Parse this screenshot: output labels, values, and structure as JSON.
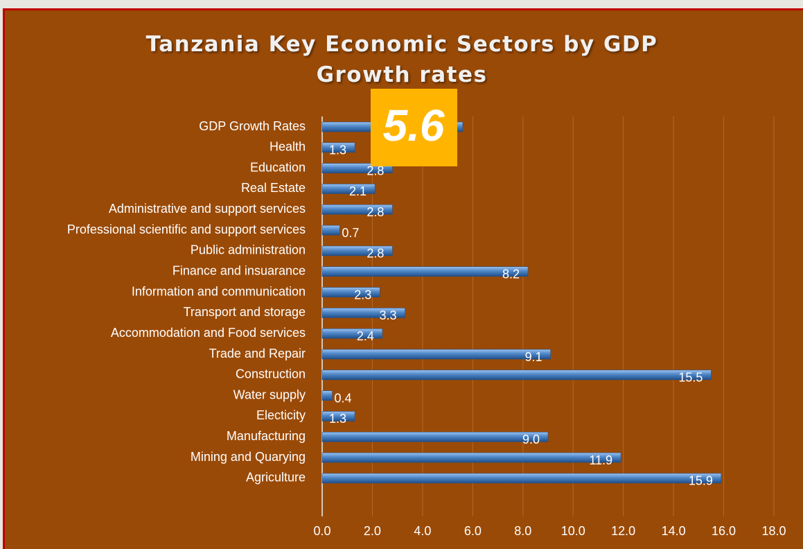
{
  "chart_data": {
    "type": "bar",
    "orientation": "horizontal",
    "title": "Tanzania Key Economic Sectors by GDP Growth rates",
    "categories": [
      "GDP Growth Rates",
      "Health",
      "Education",
      "Real Estate",
      "Administrative and support services",
      "Professional scientific and support services",
      "Public administration",
      "Finance and insuarance",
      "Information and communication",
      "Transport and storage",
      "Accommodation and Food services",
      "Trade and Repair",
      "Construction",
      "Water supply",
      "Electicity",
      "Manufacturing",
      "Mining and Quarying",
      "Agriculture"
    ],
    "values": [
      5.6,
      1.3,
      2.8,
      2.1,
      2.8,
      0.7,
      2.8,
      8.2,
      2.3,
      3.3,
      2.4,
      9.1,
      15.5,
      0.4,
      1.3,
      9,
      11.9,
      15.9
    ],
    "value_labels": [
      "5.6",
      "1.3",
      "2.8",
      "2.1",
      "2.8",
      "0.7",
      "2.8",
      "8.2",
      "2.3",
      "3.3",
      "2.4",
      "9.1",
      "15.5",
      "0.4",
      "1.3",
      "9.0",
      "11.9",
      "15.9"
    ],
    "color": "#4f86c6",
    "xlim": [
      0,
      18
    ],
    "xticks": [
      {
        "value": 0,
        "label": "0.0"
      },
      {
        "value": 2,
        "label": "2.0"
      },
      {
        "value": 4,
        "label": "4.0"
      },
      {
        "value": 6,
        "label": "6.0"
      },
      {
        "value": 8,
        "label": "8.0"
      },
      {
        "value": 10,
        "label": "10.0"
      },
      {
        "value": 12,
        "label": "12.0"
      },
      {
        "value": 14,
        "label": "14.0"
      },
      {
        "value": 16,
        "label": "16.0"
      },
      {
        "value": 18,
        "label": "18.0"
      }
    ],
    "grid": true
  }
}
